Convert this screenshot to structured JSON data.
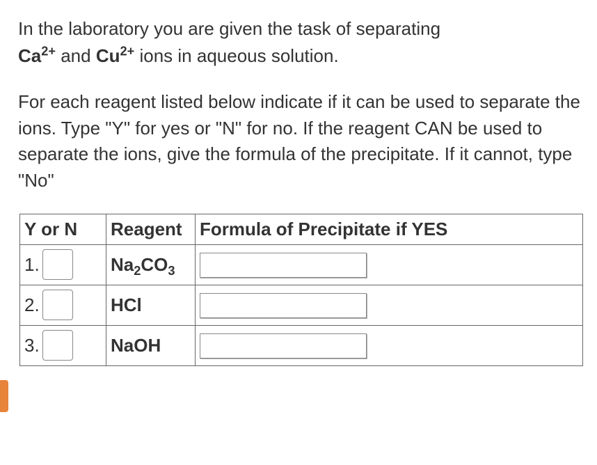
{
  "intro": {
    "line1_prefix": "In the laboratory you are given the task of separating",
    "ion1": "Ca",
    "ion1_charge": "2+",
    "between": " and ",
    "ion2": "Cu",
    "ion2_charge": "2+",
    "line1_suffix": " ions in aqueous solution."
  },
  "instructions": "For each reagent listed below indicate if it can be used to separate the ions. Type \"Y\" for yes or \"N\" for no. If the reagent CAN be used to separate the ions, give the formula of the precipitate. If it cannot, type \"No\"",
  "table": {
    "headers": {
      "yorn": "Y or N",
      "reagent": "Reagent",
      "formula": "Formula of Precipitate if YES"
    },
    "rows": [
      {
        "num": "1.",
        "yorn_value": "",
        "reagent_base": "Na",
        "reagent_sub1": "2",
        "reagent_mid": "CO",
        "reagent_sub2": "3",
        "formula_value": ""
      },
      {
        "num": "2.",
        "yorn_value": "",
        "reagent_base": "HCl",
        "reagent_sub1": "",
        "reagent_mid": "",
        "reagent_sub2": "",
        "formula_value": ""
      },
      {
        "num": "3.",
        "yorn_value": "",
        "reagent_base": "NaOH",
        "reagent_sub1": "",
        "reagent_mid": "",
        "reagent_sub2": "",
        "formula_value": ""
      }
    ]
  },
  "colors": {
    "text": "#333333",
    "border": "#666666",
    "input_border": "#888888",
    "tab": "#e8833a",
    "background": "#ffffff"
  }
}
